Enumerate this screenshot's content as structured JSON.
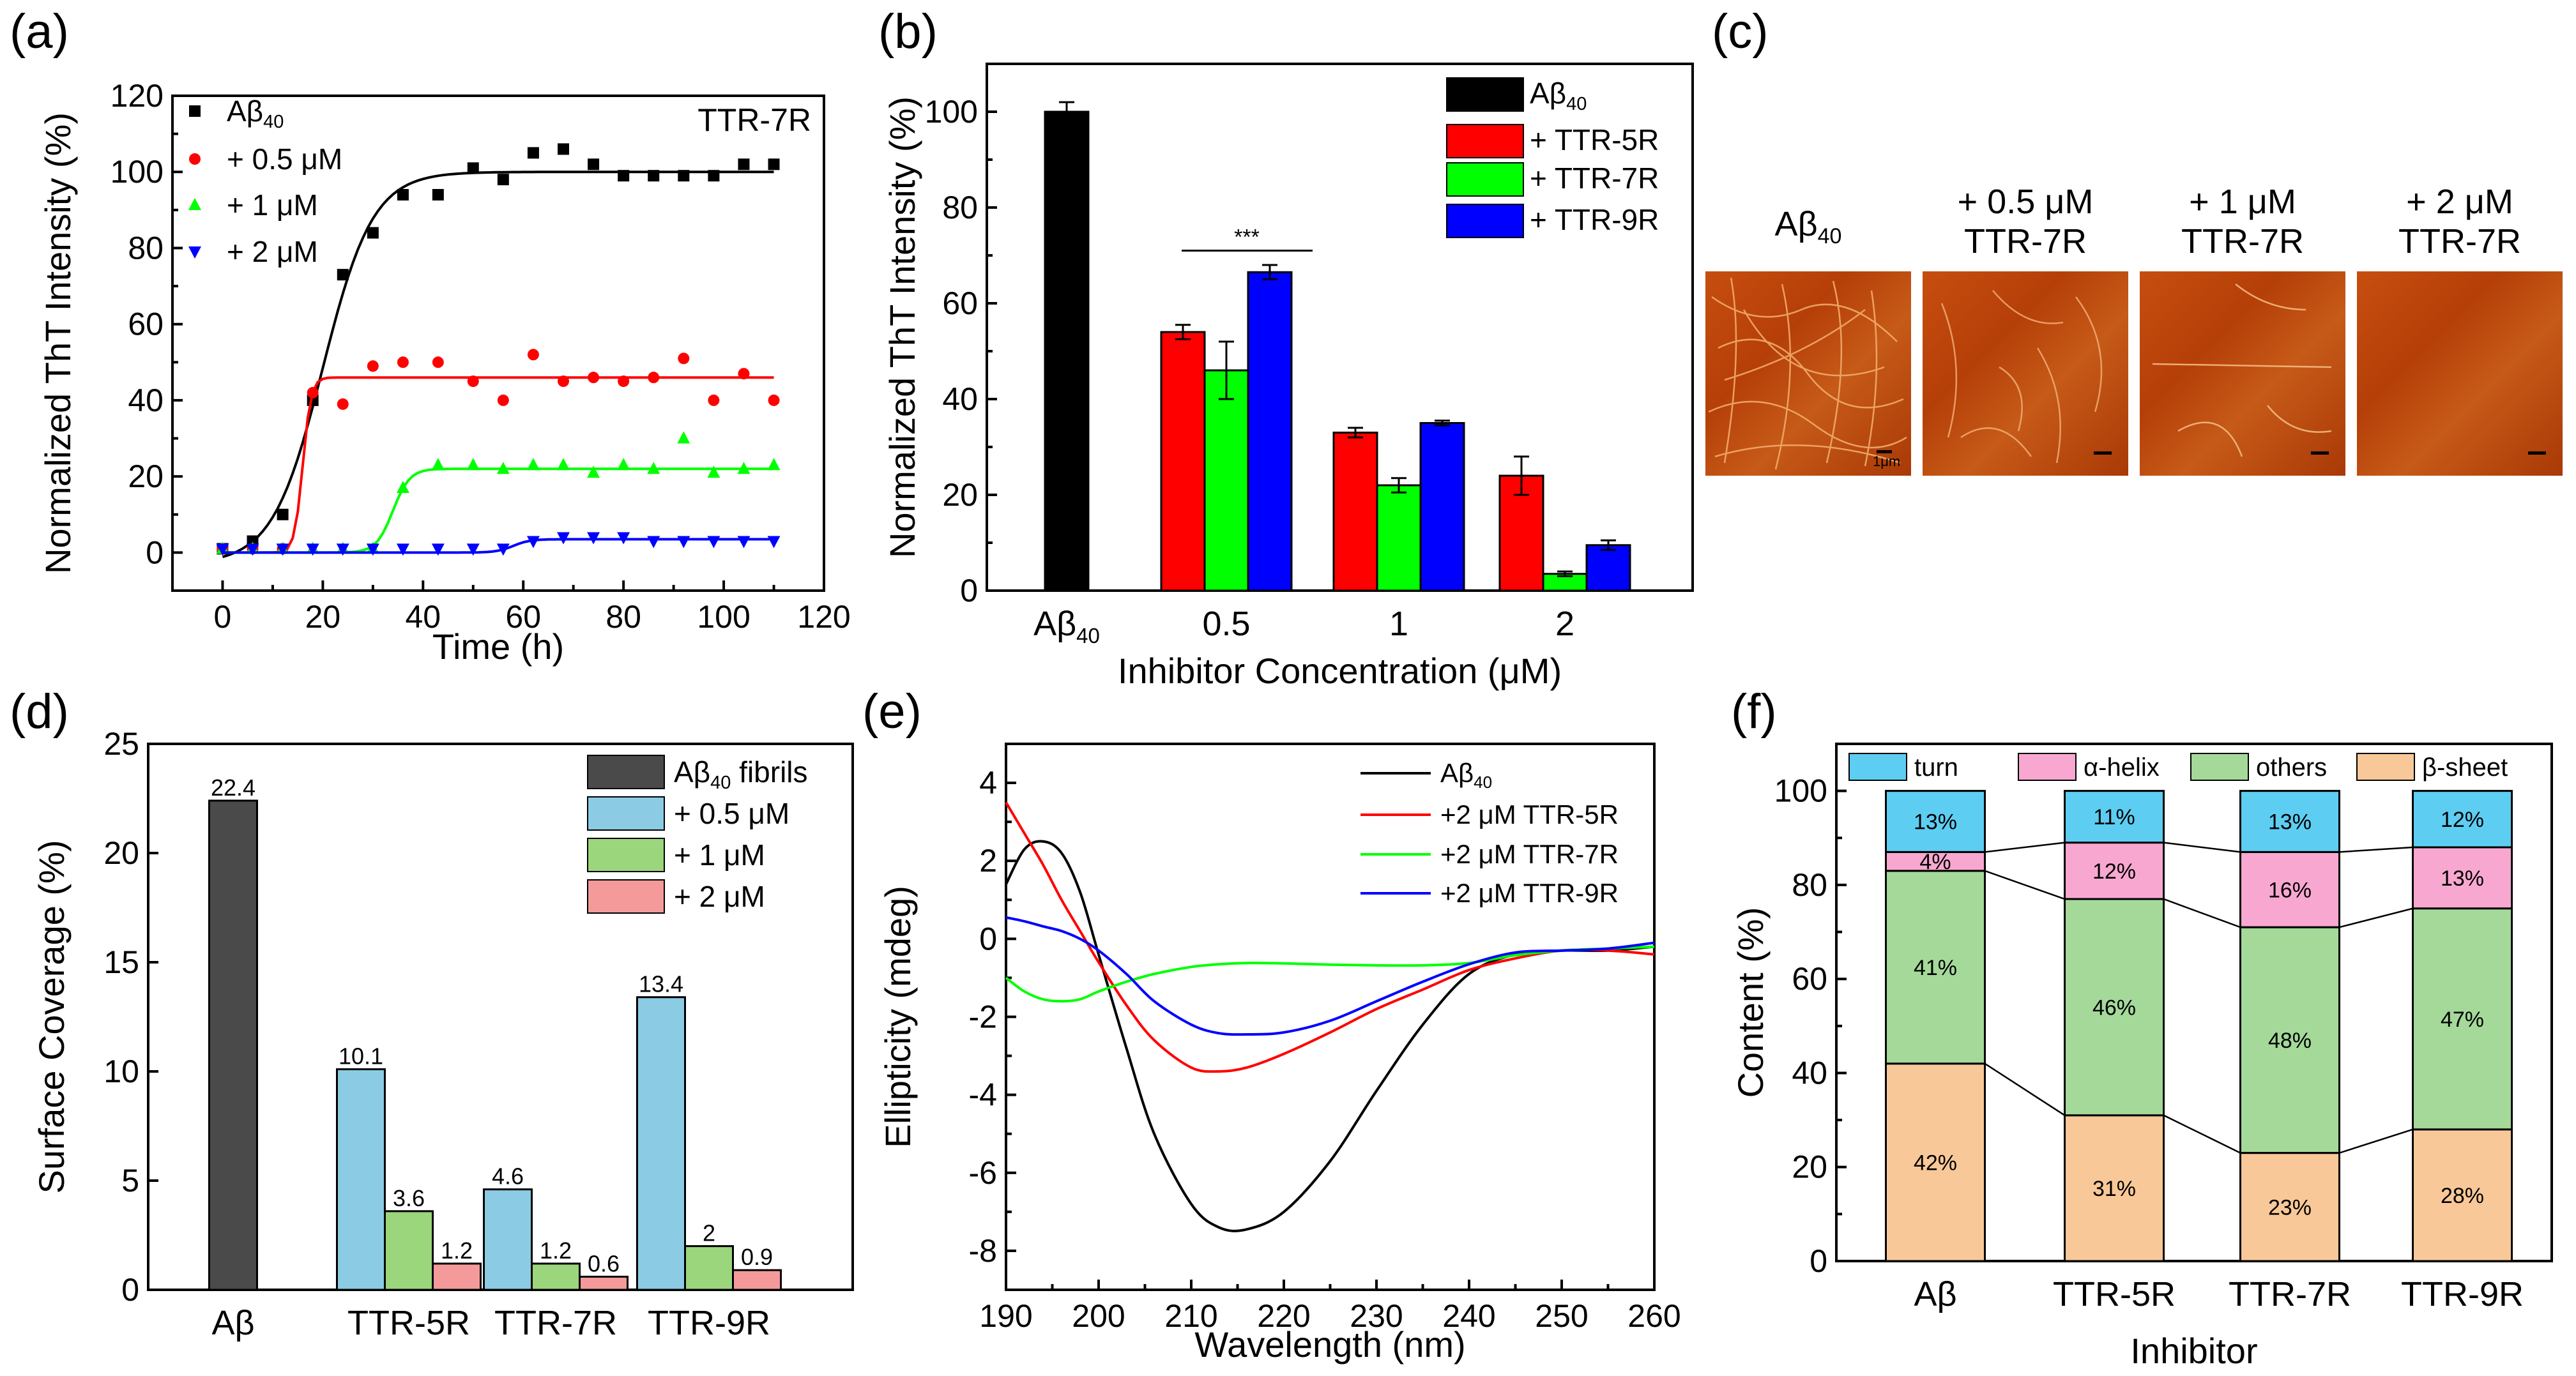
{
  "panel_labels": [
    "(a)",
    "(b)",
    "(c)",
    "(d)",
    "(e)",
    "(f)"
  ],
  "colors": {
    "black": "#000000",
    "red": "#ff0000",
    "green": "#00ff00",
    "blue": "#0000ff",
    "gray": "#4a4a4a",
    "lightblue": "#8ccbe4",
    "lightgreen": "#9cd67c",
    "pink": "#f49a9a",
    "turn": "#5ecdf2",
    "helix": "#f8a8d0",
    "others": "#a4d99a",
    "sheet": "#f9c898"
  },
  "chart_data": [
    {
      "panel": "(a)",
      "type": "scatter",
      "title": "TTR-7R",
      "xlabel": "Time (h)",
      "ylabel": "Normalized ThT Intensity (%)",
      "xlim": [
        -10,
        120
      ],
      "ylim": [
        -10,
        120
      ],
      "xticks": [
        0,
        20,
        40,
        60,
        80,
        100,
        120
      ],
      "yticks": [
        0,
        20,
        40,
        60,
        80,
        100,
        120
      ],
      "x": [
        0,
        6,
        12,
        18,
        24,
        30,
        36,
        43,
        50,
        56,
        62,
        68,
        74,
        80,
        86,
        92,
        98,
        104,
        110
      ],
      "series": [
        {
          "name": "Aβ40",
          "marker": "square",
          "values": [
            1,
            3,
            10,
            40,
            73,
            84,
            94,
            94,
            101,
            98,
            105,
            106,
            102,
            99,
            99,
            99,
            99,
            102,
            102
          ],
          "fit": {
            "plateau": 100,
            "mid": 20,
            "k": 0.2,
            "base": -3
          }
        },
        {
          "name": "+ 0.5 μM",
          "marker": "circle",
          "values": [
            1,
            1,
            1,
            42,
            39,
            49,
            50,
            50,
            45,
            40,
            52,
            45,
            46,
            45,
            46,
            51,
            40,
            47,
            40
          ],
          "fit": {
            "plateau": 46,
            "mid": 16,
            "k": 1.2,
            "base": 0
          }
        },
        {
          "name": "+ 1 μM",
          "marker": "triangle-up",
          "values": [
            1,
            1,
            1,
            1,
            1,
            1,
            17,
            23,
            23,
            22,
            23,
            23,
            21,
            23,
            22,
            30,
            21,
            22,
            23
          ],
          "fit": {
            "plateau": 22,
            "mid": 34,
            "k": 0.6,
            "base": 0
          }
        },
        {
          "name": "+ 2 μM",
          "marker": "triangle-down",
          "values": [
            1,
            1,
            1,
            1,
            1,
            1,
            1,
            1,
            1,
            1,
            3,
            4,
            4,
            4,
            3,
            3,
            3,
            3,
            3
          ],
          "fit": {
            "plateau": 3.5,
            "mid": 58,
            "k": 0.6,
            "base": 0
          }
        }
      ]
    },
    {
      "panel": "(b)",
      "type": "bar",
      "xlabel": "Inhibitor Concentration (μM)",
      "ylabel": "Normalized ThT Intensity (%)",
      "ylim": [
        0,
        110
      ],
      "yticks": [
        0,
        20,
        40,
        60,
        80,
        100
      ],
      "categories": [
        "Aβ40",
        "0.5",
        "1",
        "2"
      ],
      "series": [
        {
          "name": "Aβ40",
          "values": [
            100,
            null,
            null,
            null
          ],
          "errors": [
            2,
            null,
            null,
            null
          ]
        },
        {
          "name": "+ TTR-5R",
          "values": [
            null,
            54,
            33,
            24
          ],
          "errors": [
            null,
            1.5,
            1,
            4
          ]
        },
        {
          "name": "+ TTR-7R",
          "values": [
            null,
            46,
            22,
            3.5
          ],
          "errors": [
            null,
            6,
            1.5,
            0.5
          ]
        },
        {
          "name": "+ TTR-9R",
          "values": [
            null,
            66.5,
            35,
            9.5
          ],
          "errors": [
            null,
            1.5,
            0.5,
            1
          ]
        }
      ],
      "annotation": "***"
    },
    {
      "panel": "(d)",
      "type": "bar",
      "ylabel": "Surface Coverage (%)",
      "ylim": [
        0,
        25
      ],
      "yticks": [
        0,
        5,
        10,
        15,
        20,
        25
      ],
      "categories": [
        "Aβ",
        "TTR-5R",
        "TTR-7R",
        "TTR-9R"
      ],
      "series": [
        {
          "name": "Aβ40 fibrils",
          "values": [
            22.4,
            null,
            null,
            null
          ],
          "labels": [
            "22.4",
            null,
            null,
            null
          ]
        },
        {
          "name": "+ 0.5 μM",
          "values": [
            null,
            10.1,
            4.6,
            13.4
          ],
          "labels": [
            null,
            "10.1",
            "4.6",
            "13.4"
          ]
        },
        {
          "name": "+ 1 μM",
          "values": [
            null,
            3.6,
            1.2,
            2
          ],
          "labels": [
            null,
            "3.6",
            "1.2",
            "2"
          ]
        },
        {
          "name": "+ 2 μM",
          "values": [
            null,
            1.2,
            0.6,
            0.9
          ],
          "labels": [
            null,
            "1.2",
            "0.6",
            "0.9"
          ]
        }
      ]
    },
    {
      "panel": "(e)",
      "type": "line",
      "xlabel": "Wavelength (nm)",
      "ylabel": "Ellipticity (mdeg)",
      "xlim": [
        190,
        260
      ],
      "ylim": [
        -9,
        5
      ],
      "xticks": [
        190,
        200,
        210,
        220,
        230,
        240,
        250,
        260
      ],
      "yticks": [
        -8,
        -6,
        -4,
        -2,
        0,
        2,
        4
      ],
      "x": [
        190,
        192,
        194,
        196,
        198,
        200,
        203,
        206,
        210,
        213,
        216,
        220,
        225,
        230,
        235,
        240,
        245,
        250,
        255,
        260
      ],
      "series": [
        {
          "name": "Aβ40",
          "values": [
            1.4,
            2.3,
            2.5,
            2.2,
            1.2,
            -0.4,
            -2.8,
            -5.0,
            -6.8,
            -7.4,
            -7.45,
            -7.0,
            -5.7,
            -3.9,
            -2.2,
            -0.9,
            -0.4,
            -0.3,
            -0.3,
            -0.2
          ]
        },
        {
          "name": "+2 μM TTR-5R",
          "values": [
            3.5,
            2.7,
            1.9,
            1.0,
            0.2,
            -0.6,
            -1.7,
            -2.6,
            -3.3,
            -3.4,
            -3.3,
            -2.95,
            -2.4,
            -1.8,
            -1.3,
            -0.8,
            -0.5,
            -0.3,
            -0.3,
            -0.4
          ]
        },
        {
          "name": "+2 μM TTR-7R",
          "values": [
            -1.0,
            -1.35,
            -1.55,
            -1.6,
            -1.55,
            -1.35,
            -1.1,
            -0.9,
            -0.72,
            -0.65,
            -0.62,
            -0.63,
            -0.66,
            -0.68,
            -0.68,
            -0.62,
            -0.42,
            -0.3,
            -0.25,
            -0.2
          ]
        },
        {
          "name": "+2 μM TTR-9R",
          "values": [
            0.55,
            0.45,
            0.32,
            0.2,
            0.0,
            -0.3,
            -0.9,
            -1.6,
            -2.2,
            -2.42,
            -2.45,
            -2.4,
            -2.1,
            -1.6,
            -1.1,
            -0.65,
            -0.35,
            -0.3,
            -0.25,
            -0.1
          ]
        }
      ]
    },
    {
      "panel": "(f)",
      "type": "bar",
      "stacked": true,
      "xlabel": "Inhibitor",
      "ylabel": "Content (%)",
      "ylim": [
        0,
        110
      ],
      "yticks": [
        0,
        20,
        40,
        60,
        80,
        100
      ],
      "categories": [
        "Aβ",
        "TTR-5R",
        "TTR-7R",
        "TTR-9R"
      ],
      "series": [
        {
          "name": "β-sheet",
          "values": [
            42,
            31,
            23,
            28
          ],
          "labels": [
            "42%",
            "31%",
            "23%",
            "28%"
          ]
        },
        {
          "name": "others",
          "values": [
            41,
            46,
            48,
            47
          ],
          "labels": [
            "41%",
            "46%",
            "48%",
            "47%"
          ]
        },
        {
          "name": "α-helix",
          "values": [
            4,
            12,
            16,
            13
          ],
          "labels": [
            "4%",
            "12%",
            "16%",
            "13%"
          ]
        },
        {
          "name": "turn",
          "values": [
            13,
            11,
            13,
            12
          ],
          "labels": [
            "13%",
            "11%",
            "13%",
            "12%"
          ]
        }
      ],
      "legend_order": [
        "turn",
        "α-helix",
        "others",
        "β-sheet"
      ]
    }
  ],
  "afm_panel": {
    "panel": "(c)",
    "images": [
      {
        "label": "Aβ40",
        "label_line2": "",
        "scale_label": "1μm"
      },
      {
        "label": "+ 0.5 μM",
        "label_line2": "TTR-7R",
        "scale_label": ""
      },
      {
        "label": "+ 1 μM",
        "label_line2": "TTR-7R",
        "scale_label": ""
      },
      {
        "label": "+ 2 μM",
        "label_line2": "TTR-7R",
        "scale_label": ""
      }
    ]
  }
}
